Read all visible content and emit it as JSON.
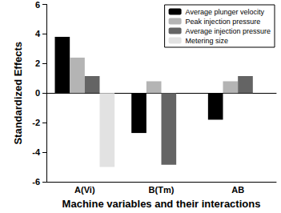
{
  "chart_data": {
    "type": "bar",
    "x_label": "Machine variables and their interactions",
    "y_label": "Standardized Effects",
    "categories": [
      "A(Vi)",
      "B(Tm)",
      "AB"
    ],
    "series": [
      {
        "name": "Average plunger velocity",
        "color": "#000000",
        "values": [
          3.8,
          -2.7,
          -1.8
        ]
      },
      {
        "name": "Peak injection pressure",
        "color": "#b4b4b4",
        "values": [
          2.4,
          0.8,
          0.8
        ]
      },
      {
        "name": "Average injection pressure",
        "color": "#646464",
        "values": [
          1.15,
          -4.85,
          1.15
        ]
      },
      {
        "name": "Metering size",
        "color": "#e2e2e2",
        "values": [
          -5.0,
          null,
          null
        ]
      }
    ],
    "ylim": [
      -6,
      6
    ],
    "yticks": [
      -6,
      -4,
      -2,
      0,
      2,
      4,
      6
    ],
    "grid": false,
    "legend": "upper right"
  }
}
